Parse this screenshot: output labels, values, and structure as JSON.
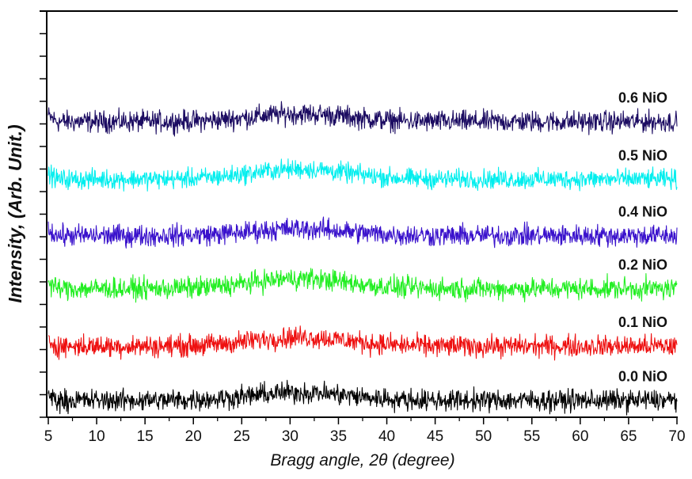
{
  "chart_data": {
    "type": "line",
    "title": "",
    "xlabel": "Bragg angle, 2θ (degree)",
    "ylabel": "Intensity, (Arb. Unit.)",
    "xlim": [
      5,
      70
    ],
    "ylim": [
      0,
      18
    ],
    "x_ticks": [
      "5",
      "10",
      "15",
      "20",
      "25",
      "30",
      "35",
      "40",
      "45",
      "50",
      "55",
      "60",
      "65",
      "70"
    ],
    "y_ticks_labeled": false,
    "grid": false,
    "legend": "inline labels at right end of each trace",
    "x_step": 0.05,
    "series": [
      {
        "name": "0.6 NiO",
        "color": "#1c0c62",
        "baseline": 13.1,
        "noise": 0.42,
        "hump_center": 31,
        "hump_height": 0.35,
        "hump_width": 7
      },
      {
        "name": "0.5 NiO",
        "color": "#00eeee",
        "baseline": 10.55,
        "noise": 0.38,
        "hump_center": 31,
        "hump_height": 0.45,
        "hump_width": 7
      },
      {
        "name": "0.4 NiO",
        "color": "#3a12cc",
        "baseline": 8.05,
        "noise": 0.42,
        "hump_center": 31,
        "hump_height": 0.3,
        "hump_width": 7
      },
      {
        "name": "0.2 NiO",
        "color": "#22ee22",
        "baseline": 5.7,
        "noise": 0.42,
        "hump_center": 31,
        "hump_height": 0.45,
        "hump_width": 7
      },
      {
        "name": "0.1 NiO",
        "color": "#ee1010",
        "baseline": 3.15,
        "noise": 0.42,
        "hump_center": 31,
        "hump_height": 0.4,
        "hump_width": 7
      },
      {
        "name": "0.0 NiO",
        "color": "#000000",
        "baseline": 0.75,
        "noise": 0.42,
        "hump_center": 31,
        "hump_height": 0.35,
        "hump_width": 7
      }
    ]
  }
}
